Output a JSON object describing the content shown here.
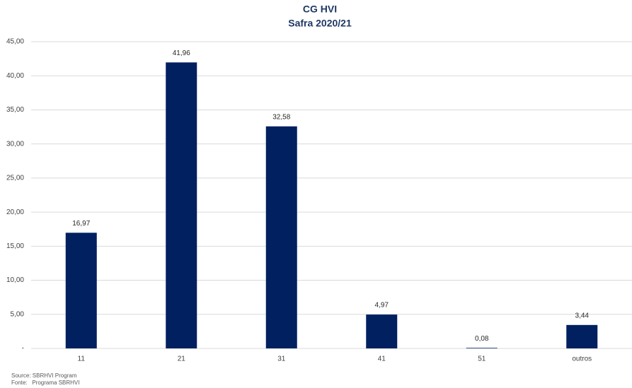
{
  "chart_data": {
    "type": "bar",
    "title": "CG HVI",
    "subtitle": "Safra 2020/21",
    "categories": [
      "11",
      "21",
      "31",
      "41",
      "51",
      "outros"
    ],
    "values": [
      16.97,
      41.96,
      32.58,
      4.97,
      0.08,
      3.44
    ],
    "value_labels": [
      "16,97",
      "41,96",
      "32,58",
      "4,97",
      "0,08",
      "3,44"
    ],
    "color": "#002060",
    "ylim": [
      0,
      45
    ],
    "yticks": [
      {
        "value": 0,
        "label": "-"
      },
      {
        "value": 5,
        "label": "5,00"
      },
      {
        "value": 10,
        "label": "10,00"
      },
      {
        "value": 15,
        "label": "15,00"
      },
      {
        "value": 20,
        "label": "20,00"
      },
      {
        "value": 25,
        "label": "25,00"
      },
      {
        "value": 30,
        "label": "30,00"
      },
      {
        "value": 35,
        "label": "35,00"
      },
      {
        "value": 40,
        "label": "40,00"
      },
      {
        "value": 45,
        "label": "45,00"
      }
    ],
    "grid": true,
    "source": [
      "Source: SBRHVI Program",
      "Fonte:   Programa SBRHVI"
    ]
  }
}
